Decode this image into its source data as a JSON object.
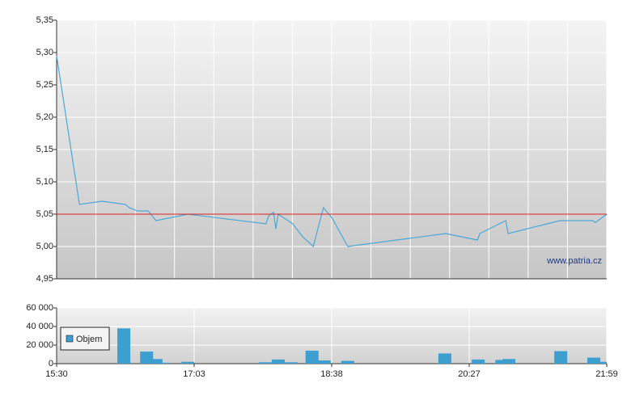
{
  "chart_data": [
    {
      "type": "line",
      "watermark": "www.patria.cz",
      "xlim": [
        0,
        14
      ],
      "xgrid": [
        0,
        1,
        2,
        3,
        4,
        5,
        6,
        7,
        8,
        9,
        10,
        11,
        12,
        13,
        14
      ],
      "ylim": [
        4.95,
        5.35
      ],
      "yticks": [
        {
          "value": 4.95,
          "label": "4,95"
        },
        {
          "value": 5.0,
          "label": "5,00"
        },
        {
          "value": 5.05,
          "label": "5,05"
        },
        {
          "value": 5.1,
          "label": "5,10"
        },
        {
          "value": 5.15,
          "label": "5,15"
        },
        {
          "value": 5.2,
          "label": "5,20"
        },
        {
          "value": 5.25,
          "label": "5,25"
        },
        {
          "value": 5.3,
          "label": "5,30"
        },
        {
          "value": 5.35,
          "label": "5,35"
        }
      ],
      "grid": true,
      "color": "#4aa8d6",
      "reference_line": 5.05,
      "reference_color": "#e02020",
      "x": [
        0,
        0.58,
        1.15,
        1.75,
        1.85,
        2.06,
        2.33,
        2.53,
        3.34,
        5.33,
        5.39,
        5.52,
        5.58,
        5.64,
        6.01,
        6.26,
        6.53,
        6.79,
        7.0,
        7.41,
        9.9,
        10.71,
        10.77,
        11.43,
        11.49,
        12.81,
        13.65,
        13.71,
        14
      ],
      "values": [
        5.295,
        5.065,
        5.07,
        5.065,
        5.06,
        5.055,
        5.055,
        5.04,
        5.05,
        5.035,
        5.047,
        5.053,
        5.027,
        5.05,
        5.035,
        5.015,
        5.0,
        5.06,
        5.045,
        5.0,
        5.02,
        5.01,
        5.02,
        5.04,
        5.02,
        5.04,
        5.04,
        5.037,
        5.05
      ]
    },
    {
      "type": "bar",
      "legend": "left",
      "xlim": [
        0,
        14
      ],
      "xticks": [
        {
          "value": 0,
          "label": "15:30"
        },
        {
          "value": 3.5,
          "label": "17:03"
        },
        {
          "value": 7,
          "label": "18:38"
        },
        {
          "value": 10.5,
          "label": "20:27"
        },
        {
          "value": 14,
          "label": "21:59"
        }
      ],
      "ylim": [
        0,
        60000
      ],
      "yticks": [
        0,
        {
          "value": 20000,
          "label": "20 000"
        },
        {
          "value": 40000,
          "label": "40 000"
        },
        {
          "value": 60000,
          "label": "60 000"
        }
      ],
      "grid": true,
      "bar_width": 0.33,
      "x": [
        1.71,
        2.29,
        2.53,
        2.7,
        3.34,
        5.31,
        5.64,
        5.97,
        6.5,
        6.81,
        7.41,
        9.88,
        10.73,
        11.33,
        11.51,
        12.83,
        13.67,
        13.92
      ],
      "series": [
        {
          "name": "Objem",
          "color": "#3d9fd0",
          "values": [
            38000,
            13000,
            5000,
            1000,
            2000,
            1500,
            4500,
            1500,
            14000,
            3500,
            3000,
            11000,
            4500,
            4000,
            5000,
            13500,
            6500,
            2000
          ]
        }
      ]
    }
  ]
}
